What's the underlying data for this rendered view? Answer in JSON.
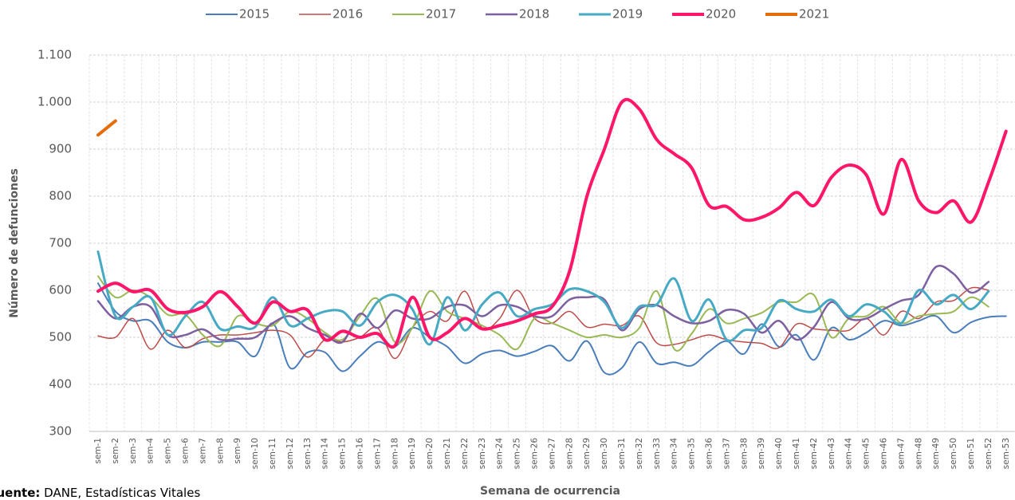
{
  "chart_data": {
    "type": "line",
    "x_label": "Semana de ocurrencia",
    "y_label": "Número de defunciones",
    "source_label": "Fuente:",
    "source": "DANE, Estadísticas Vitales",
    "ylim": [
      300,
      1100
    ],
    "yticks": [
      300,
      400,
      500,
      600,
      700,
      800,
      900,
      {
        "value": 1000,
        "label": "1.000"
      },
      {
        "value": 1100,
        "label": "1.100"
      }
    ],
    "grid": true,
    "smooth": true,
    "categories": [
      "sem-1",
      "sem-2",
      "sem-3",
      "sem-4",
      "sem-5",
      "sem-6",
      "sem-7",
      "sem-8",
      "sem-9",
      "sem-10",
      "sem-11",
      "sem-12",
      "sem-13",
      "sem-14",
      "sem-15",
      "sem-16",
      "sem-17",
      "sem-18",
      "sem-19",
      "sem-20",
      "sem-21",
      "sem-22",
      "sem-23",
      "sem-24",
      "sem-25",
      "sem-26",
      "sem-27",
      "sem-28",
      "sem-29",
      "sem-30",
      "sem-31",
      "sem-32",
      "sem-33",
      "sem-34",
      "sem-35",
      "sem-36",
      "sem-37",
      "sem-38",
      "sem-39",
      "sem-40",
      "sem-41",
      "sem-42",
      "sem-43",
      "sem-44",
      "sem-45",
      "sem-46",
      "sem-47",
      "sem-48",
      "sem-49",
      "sem-50",
      "sem-51",
      "sem-52",
      "sem-53"
    ],
    "series": [
      {
        "name": "2015",
        "color": "#4a7ebb",
        "line_width": 2,
        "values": [
          615,
          555,
          535,
          535,
          490,
          478,
          490,
          490,
          490,
          460,
          530,
          435,
          468,
          468,
          428,
          460,
          490,
          480,
          520,
          500,
          480,
          445,
          465,
          472,
          460,
          470,
          482,
          450,
          492,
          425,
          435,
          490,
          445,
          447,
          440,
          470,
          492,
          465,
          528,
          480,
          505,
          452,
          520,
          495,
          510,
          535,
          525,
          535,
          545,
          510,
          532,
          543,
          545
        ]
      },
      {
        "name": "2016",
        "color": "#be4b48",
        "line_width": 1.5,
        "values": [
          503,
          500,
          540,
          475,
          515,
          478,
          497,
          505,
          505,
          510,
          515,
          505,
          458,
          495,
          490,
          500,
          520,
          455,
          520,
          555,
          535,
          598,
          520,
          540,
          600,
          540,
          530,
          555,
          522,
          528,
          525,
          545,
          488,
          485,
          495,
          505,
          495,
          490,
          487,
          478,
          528,
          518,
          515,
          515,
          540,
          505,
          555,
          540,
          575,
          578,
          605,
          600,
          null
        ]
      },
      {
        "name": "2017",
        "color": "#98b954",
        "line_width": 2,
        "values": [
          630,
          585,
          600,
          585,
          548,
          548,
          505,
          482,
          545,
          530,
          525,
          555,
          540,
          510,
          495,
          545,
          582,
          490,
          520,
          598,
          555,
          540,
          525,
          505,
          475,
          540,
          530,
          515,
          500,
          505,
          500,
          520,
          598,
          475,
          508,
          560,
          530,
          540,
          552,
          575,
          575,
          590,
          500,
          540,
          545,
          565,
          530,
          545,
          550,
          555,
          585,
          565,
          null
        ]
      },
      {
        "name": "2018",
        "color": "#7d60a0",
        "line_width": 2.5,
        "values": [
          577,
          540,
          565,
          565,
          505,
          505,
          517,
          495,
          497,
          500,
          530,
          545,
          520,
          505,
          490,
          550,
          520,
          557,
          540,
          540,
          565,
          568,
          545,
          568,
          565,
          545,
          545,
          580,
          585,
          580,
          515,
          560,
          568,
          545,
          530,
          535,
          558,
          550,
          510,
          535,
          495,
          522,
          575,
          540,
          540,
          560,
          578,
          590,
          650,
          635,
          595,
          618,
          null
        ]
      },
      {
        "name": "2019",
        "color": "#46aac5",
        "line_width": 3,
        "values": [
          682,
          545,
          565,
          585,
          505,
          545,
          575,
          518,
          523,
          522,
          585,
          525,
          540,
          555,
          555,
          525,
          575,
          590,
          560,
          485,
          585,
          515,
          570,
          595,
          545,
          560,
          570,
          602,
          598,
          575,
          520,
          565,
          570,
          625,
          535,
          580,
          495,
          515,
          520,
          578,
          560,
          555,
          580,
          545,
          570,
          555,
          530,
          600,
          570,
          590,
          560,
          598,
          null
        ]
      },
      {
        "name": "2020",
        "color": "#ff1669",
        "line_width": 4,
        "values": [
          598,
          615,
          597,
          600,
          560,
          553,
          565,
          597,
          565,
          530,
          575,
          555,
          558,
          495,
          513,
          500,
          508,
          482,
          585,
          500,
          510,
          540,
          518,
          525,
          535,
          550,
          565,
          640,
          800,
          900,
          1000,
          985,
          920,
          890,
          860,
          780,
          778,
          750,
          755,
          775,
          808,
          780,
          840,
          866,
          845,
          762,
          878,
          790,
          765,
          790,
          745,
          830,
          938
        ]
      },
      {
        "name": "2021",
        "color": "#e46c0a",
        "line_width": 4,
        "values": [
          930,
          960,
          null,
          null,
          null,
          null,
          null,
          null,
          null,
          null,
          null,
          null,
          null,
          null,
          null,
          null,
          null,
          null,
          null,
          null,
          null,
          null,
          null,
          null,
          null,
          null,
          null,
          null,
          null,
          null,
          null,
          null,
          null,
          null,
          null,
          null,
          null,
          null,
          null,
          null,
          null,
          null,
          null,
          null,
          null,
          null,
          null,
          null,
          null,
          null,
          null,
          null,
          null
        ]
      }
    ]
  }
}
